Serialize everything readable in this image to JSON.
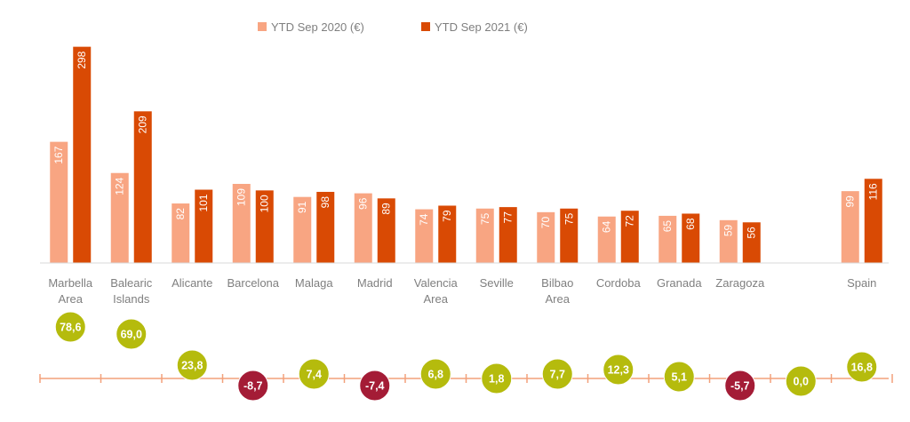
{
  "chart_data": {
    "type": "bar",
    "categories": [
      [
        "Marbella",
        "Area"
      ],
      [
        "Balearic",
        "Islands"
      ],
      [
        "Alicante"
      ],
      [
        "Barcelona"
      ],
      [
        "Malaga"
      ],
      [
        "Madrid"
      ],
      [
        "Valencia",
        "Area"
      ],
      [
        "Seville"
      ],
      [
        "Bilbao",
        "Area"
      ],
      [
        "Cordoba"
      ],
      [
        "Granada"
      ],
      [
        "Zaragoza"
      ],
      [],
      [
        "Spain"
      ]
    ],
    "series": [
      {
        "name": "YTD Sep 2020 (€)",
        "color": "#f8a582",
        "values": [
          167,
          124,
          82,
          109,
          91,
          96,
          74,
          75,
          70,
          64,
          65,
          59,
          null,
          99
        ]
      },
      {
        "name": "YTD Sep 2021 (€)",
        "color": "#d94a04",
        "values": [
          298,
          209,
          101,
          100,
          98,
          89,
          79,
          77,
          75,
          72,
          68,
          56,
          null,
          116
        ]
      }
    ],
    "ylim": [
      0,
      300
    ],
    "legend_position": "top-center",
    "bubbles": {
      "values": [
        "78,6",
        "69,0",
        "23,8",
        "-8,7",
        "7,4",
        "-7,4",
        "6,8",
        "1,8",
        "7,7",
        "12,3",
        "5,1",
        "-5,7",
        "0,0",
        "16,8"
      ],
      "positive_color": "#b5bb0d",
      "negative_color": "#a41c36",
      "axis_color": "#f2a07a"
    }
  }
}
